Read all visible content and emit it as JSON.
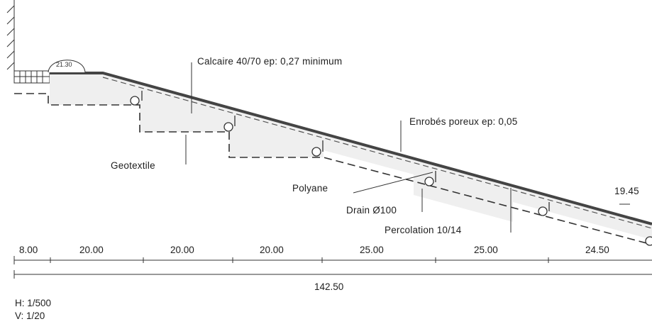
{
  "drawing": {
    "elevation_start": "21.30",
    "elevation_end": "19.45",
    "labels": {
      "calcaire": "Calcaire 40/70 ep: 0,27 minimum",
      "enrobes": "Enrobés poreux ep: 0,05",
      "geotextile": "Geotextile",
      "polyane": "Polyane",
      "drain": "Drain Ø100",
      "percolation": "Percolation 10/14"
    },
    "segments": [
      "8.00",
      "20.00",
      "20.00",
      "20.00",
      "25.00",
      "25.00",
      "24.50"
    ],
    "total": "142.50",
    "scale_h": "H: 1/500",
    "scale_v": "V: 1/20"
  }
}
